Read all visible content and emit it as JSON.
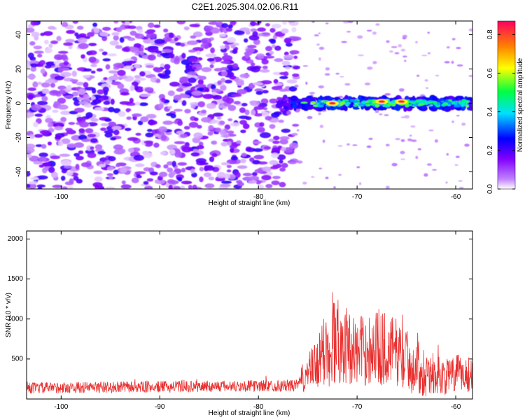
{
  "title": "C2E1.2025.304.02.06.R11",
  "chart_data": [
    {
      "type": "heatmap",
      "xlabel": "Height of straight line (km)",
      "ylabel": "Frequency (Hz)",
      "xlim": [
        -103.5,
        -58.3
      ],
      "ylim": [
        -50,
        48
      ],
      "xticks": [
        -100,
        -90,
        -80,
        -70,
        -60
      ],
      "yticks": [
        -40,
        -20,
        0,
        20,
        40
      ],
      "noise_region_km": [
        -103.5,
        -76.0
      ],
      "signal_band_km": [
        -78.0,
        -58.3
      ],
      "signal_center_hz": 0,
      "signal_halfwidth_hz": 3,
      "peaks": [
        {
          "x": -72.5,
          "y": 0,
          "amplitude": 0.85
        },
        {
          "x": -67.5,
          "y": 1,
          "amplitude": 0.85
        },
        {
          "x": -65.5,
          "y": 1,
          "amplitude": 0.85
        }
      ],
      "colorbar": {
        "label": "Normalized spectral amplitude",
        "range": [
          0.0,
          0.87
        ],
        "ticks": [
          0.0,
          0.2,
          0.4,
          0.6,
          0.8
        ],
        "colors": [
          "#ffffff",
          "#8000ff",
          "#0000ff",
          "#00e0ff",
          "#00ff40",
          "#ffff00",
          "#ff8000",
          "#ff0060"
        ]
      }
    },
    {
      "type": "line",
      "xlabel": "Height of straight line (km)",
      "ylabel": "SNR (10 * v/v)",
      "xlim": [
        -103.5,
        -58.3
      ],
      "ylim": [
        0,
        2100
      ],
      "xticks": [
        -100,
        -90,
        -80,
        -70,
        -60
      ],
      "yticks": [
        500,
        1000,
        1500,
        2000
      ],
      "color": "#e8302f",
      "envelope": [
        {
          "x": -103.5,
          "base": 130,
          "amp": 140
        },
        {
          "x": -76.0,
          "base": 160,
          "amp": 150
        },
        {
          "x": -75.5,
          "base": 250,
          "amp": 380
        },
        {
          "x": -74.0,
          "base": 400,
          "amp": 650
        },
        {
          "x": -72.5,
          "base": 700,
          "amp": 1300
        },
        {
          "x": -71.5,
          "base": 650,
          "amp": 1000
        },
        {
          "x": -70.0,
          "base": 550,
          "amp": 850
        },
        {
          "x": -68.0,
          "base": 600,
          "amp": 1000
        },
        {
          "x": -66.0,
          "base": 550,
          "amp": 850
        },
        {
          "x": -64.5,
          "base": 400,
          "amp": 750
        },
        {
          "x": -63.0,
          "base": 300,
          "amp": 600
        },
        {
          "x": -61.0,
          "base": 250,
          "amp": 450
        },
        {
          "x": -59.5,
          "base": 300,
          "amp": 500
        },
        {
          "x": -58.3,
          "base": 280,
          "amp": 450
        }
      ]
    }
  ]
}
